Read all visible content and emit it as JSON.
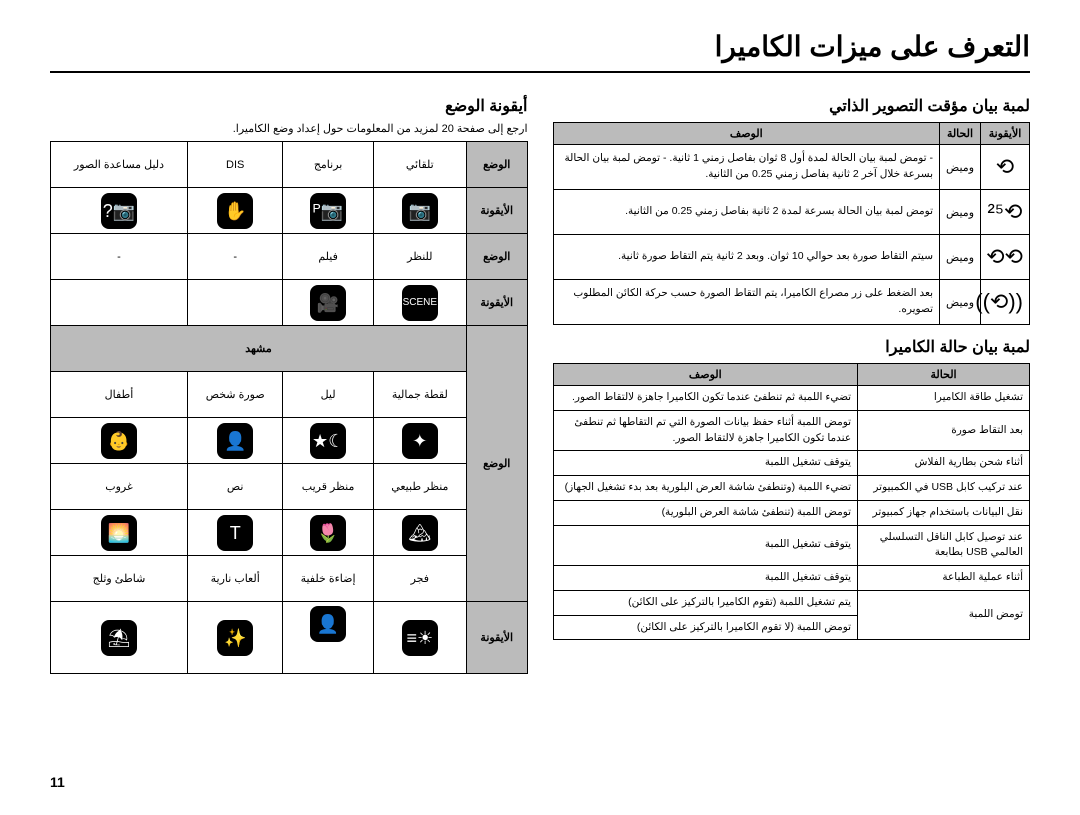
{
  "page_title": "التعرف على ميزات الكاميرا",
  "page_number": "11",
  "right_col": {
    "timer_section": {
      "title": "لمبة بيان مؤقت التصوير الذاتي",
      "headers": [
        "الأيقونة",
        "الحالة",
        "الوصف"
      ],
      "rows": [
        {
          "icon": "⟲",
          "state": "وميض",
          "desc": "- تومض لمبة بيان الحالة لمدة أول 8 ثوان بفاصل زمني 1 ثانية.\n- تومض لمبة بيان الحالة بسرعة خلال آخر 2 ثانية بفاصل زمني 0.25 من الثانية."
        },
        {
          "icon": "⟲²⁵",
          "state": "وميض",
          "desc": "تومض لمبة بيان الحالة بسرعة لمدة 2 ثانية بفاصل زمني 0.25 من الثانية."
        },
        {
          "icon": "⟲⟲",
          "state": "وميض",
          "desc": "سيتم التقاط صورة بعد حوالي 10 ثوان. وبعد 2 ثانية يتم التقاط صورة ثانية."
        },
        {
          "icon": "((⟲))",
          "state": "وميض",
          "desc": "بعد الضغط على زر مصراع الكاميرا، يتم التقاط الصورة حسب حركة الكائن المطلوب تصويره."
        }
      ]
    },
    "status_section": {
      "title": "لمبة بيان حالة الكاميرا",
      "headers": [
        "الحالة",
        "الوصف"
      ],
      "rows": [
        {
          "state": "تشغيل طاقة الكاميرا",
          "desc": "تضيء اللمبة ثم تنطفئ عندما تكون الكاميرا جاهزة لالتقاط الصور."
        },
        {
          "state": "بعد التقاط صورة",
          "desc": "تومض اللمبة أثناء حفظ بيانات الصورة التي تم التقاطها ثم تنطفئ عندما تكون الكاميرا جاهزة لالتقاط الصور."
        },
        {
          "state": "أثناء شحن بطارية الفلاش",
          "desc": "يتوقف تشغيل اللمبة"
        },
        {
          "state": "عند تركيب كابل USB في الكمبيوتر",
          "desc": "تضيء اللمبة (وتنطفئ شاشة العرض البلورية بعد بدء تشغيل الجهاز)"
        },
        {
          "state": "نقل البيانات باستخدام جهاز كمبيوتر",
          "desc": "تومض اللمبة (تنطفئ شاشة العرض البلورية)"
        },
        {
          "state": "عند توصيل كابل الناقل التسلسلي العالمي USB بطابعة",
          "desc": "يتوقف تشغيل اللمبة"
        },
        {
          "state": "أثناء عملية الطباعة",
          "desc": "يتوقف تشغيل اللمبة"
        },
        {
          "state": "",
          "desc": "يتم تشغيل اللمبة (تقوم الكاميرا بالتركيز على الكائن)"
        },
        {
          "state": "تومض اللمبة",
          "desc": "تومض اللمبة (لا تقوم الكاميرا بالتركيز على الكائن)"
        }
      ]
    }
  },
  "left_col": {
    "mode_section": {
      "title": "أيقونة الوضع",
      "note": "ارجع إلى صفحة 20 لمزيد من المعلومات حول إعداد وضع الكاميرا.",
      "row1": {
        "hdr": "الوضع",
        "cells": [
          "تلقائي",
          "برنامج",
          "DIS",
          "دليل مساعدة الصور"
        ]
      },
      "row1_icons": {
        "hdr": "الأيقونة",
        "icons": [
          "📷",
          "📷ᴾ",
          "✋",
          "📷?"
        ]
      },
      "row2": {
        "hdr": "الوضع",
        "cells": [
          "للنظر",
          "فيلم",
          "-",
          "-"
        ]
      },
      "row2_icons": {
        "hdr": "الأيقونة",
        "icons": [
          "SCENE",
          "🎥",
          "",
          ""
        ]
      },
      "scene_hdr": "مشهد",
      "scene_r1": {
        "hdr": "الوضع",
        "cells": [
          "لقطة جمالية",
          "ليل",
          "صورة شخص",
          "أطفال"
        ]
      },
      "scene_r1_icons": {
        "hdr": "الأيقونة",
        "icons": [
          "✦",
          "☾★",
          "👤",
          "👶"
        ]
      },
      "scene_r2": {
        "hdr": "الوضع",
        "cells": [
          "منظر طبيعي",
          "منظر قريب",
          "نص",
          "غروب"
        ]
      },
      "scene_r2_icons": {
        "hdr": "الأيقونة",
        "icons": [
          "🏔",
          "🌷",
          "T",
          "🌅"
        ]
      },
      "scene_r3": {
        "hdr": "الوضع",
        "cells": [
          "فجر",
          "إضاءة خلفية",
          "ألعاب نارية",
          "شاطئ وثلج"
        ]
      },
      "scene_r3_icons": {
        "hdr": "الأيقونة",
        "icons": [
          "☀≡",
          "👤☀",
          "✨",
          "⛱"
        ]
      }
    }
  }
}
